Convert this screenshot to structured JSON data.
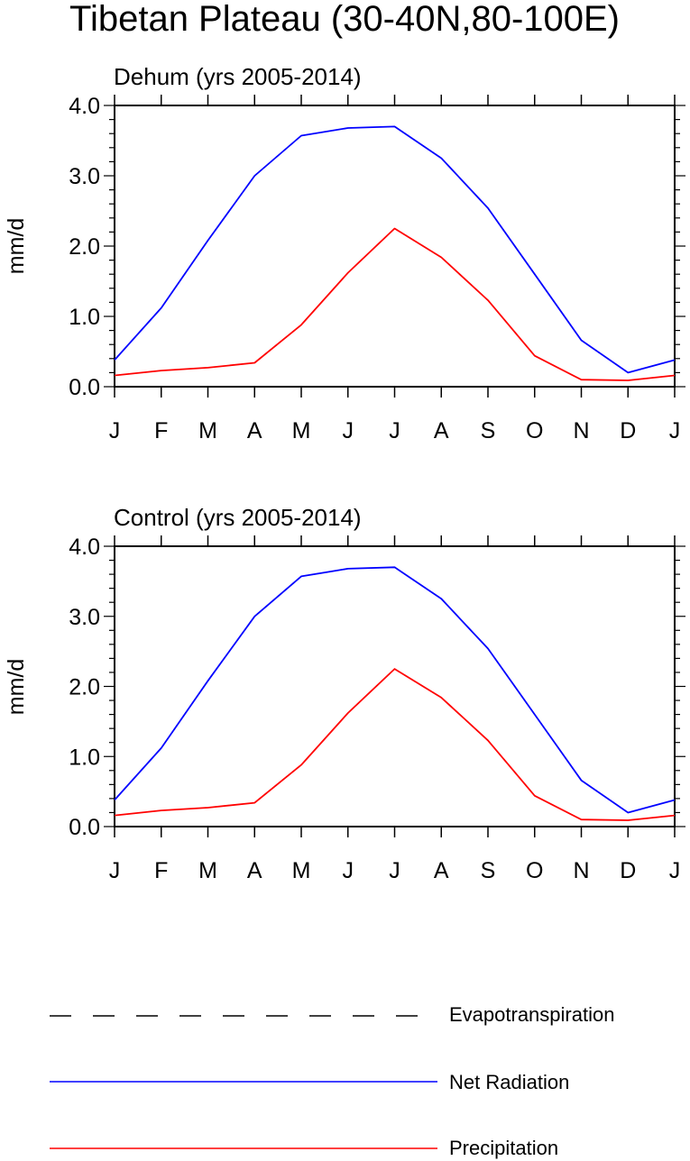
{
  "figure": {
    "title": "Tibetan Plateau (30-40N,80-100E)"
  },
  "legend": [
    {
      "name": "Evapotranspiration",
      "color": "#000000",
      "style": "dashed"
    },
    {
      "name": "Net Radiation",
      "color": "#0000ff",
      "style": "solid"
    },
    {
      "name": "Precipitation",
      "color": "#ff0000",
      "style": "solid"
    }
  ],
  "chart_data": [
    {
      "type": "line",
      "title": "Dehum (yrs 2005-2014)",
      "ylabel": "mm/d",
      "xlabel": "",
      "categories": [
        "J",
        "F",
        "M",
        "A",
        "M",
        "J",
        "J",
        "A",
        "S",
        "O",
        "N",
        "D",
        "J"
      ],
      "ylim": [
        0,
        4
      ],
      "yticks": [
        "0.0",
        "1.0",
        "2.0",
        "3.0",
        "4.0"
      ],
      "series": [
        {
          "name": "Net Radiation",
          "color": "#0000ff",
          "values": [
            0.38,
            1.12,
            2.08,
            3.0,
            3.57,
            3.68,
            3.7,
            3.25,
            2.54,
            1.6,
            0.66,
            0.2,
            0.38
          ]
        },
        {
          "name": "Precipitation",
          "color": "#ff0000",
          "values": [
            0.16,
            0.23,
            0.27,
            0.34,
            0.88,
            1.62,
            2.25,
            1.84,
            1.23,
            0.44,
            0.1,
            0.09,
            0.16
          ]
        }
      ]
    },
    {
      "type": "line",
      "title": "Control (yrs 2005-2014)",
      "ylabel": "mm/d",
      "xlabel": "",
      "categories": [
        "J",
        "F",
        "M",
        "A",
        "M",
        "J",
        "J",
        "A",
        "S",
        "O",
        "N",
        "D",
        "J"
      ],
      "ylim": [
        0,
        4
      ],
      "yticks": [
        "0.0",
        "1.0",
        "2.0",
        "3.0",
        "4.0"
      ],
      "series": [
        {
          "name": "Net Radiation",
          "color": "#0000ff",
          "values": [
            0.38,
            1.12,
            2.08,
            3.0,
            3.57,
            3.68,
            3.7,
            3.25,
            2.54,
            1.6,
            0.66,
            0.2,
            0.38
          ]
        },
        {
          "name": "Precipitation",
          "color": "#ff0000",
          "values": [
            0.16,
            0.23,
            0.27,
            0.34,
            0.88,
            1.62,
            2.25,
            1.84,
            1.23,
            0.44,
            0.1,
            0.09,
            0.16
          ]
        }
      ]
    }
  ]
}
